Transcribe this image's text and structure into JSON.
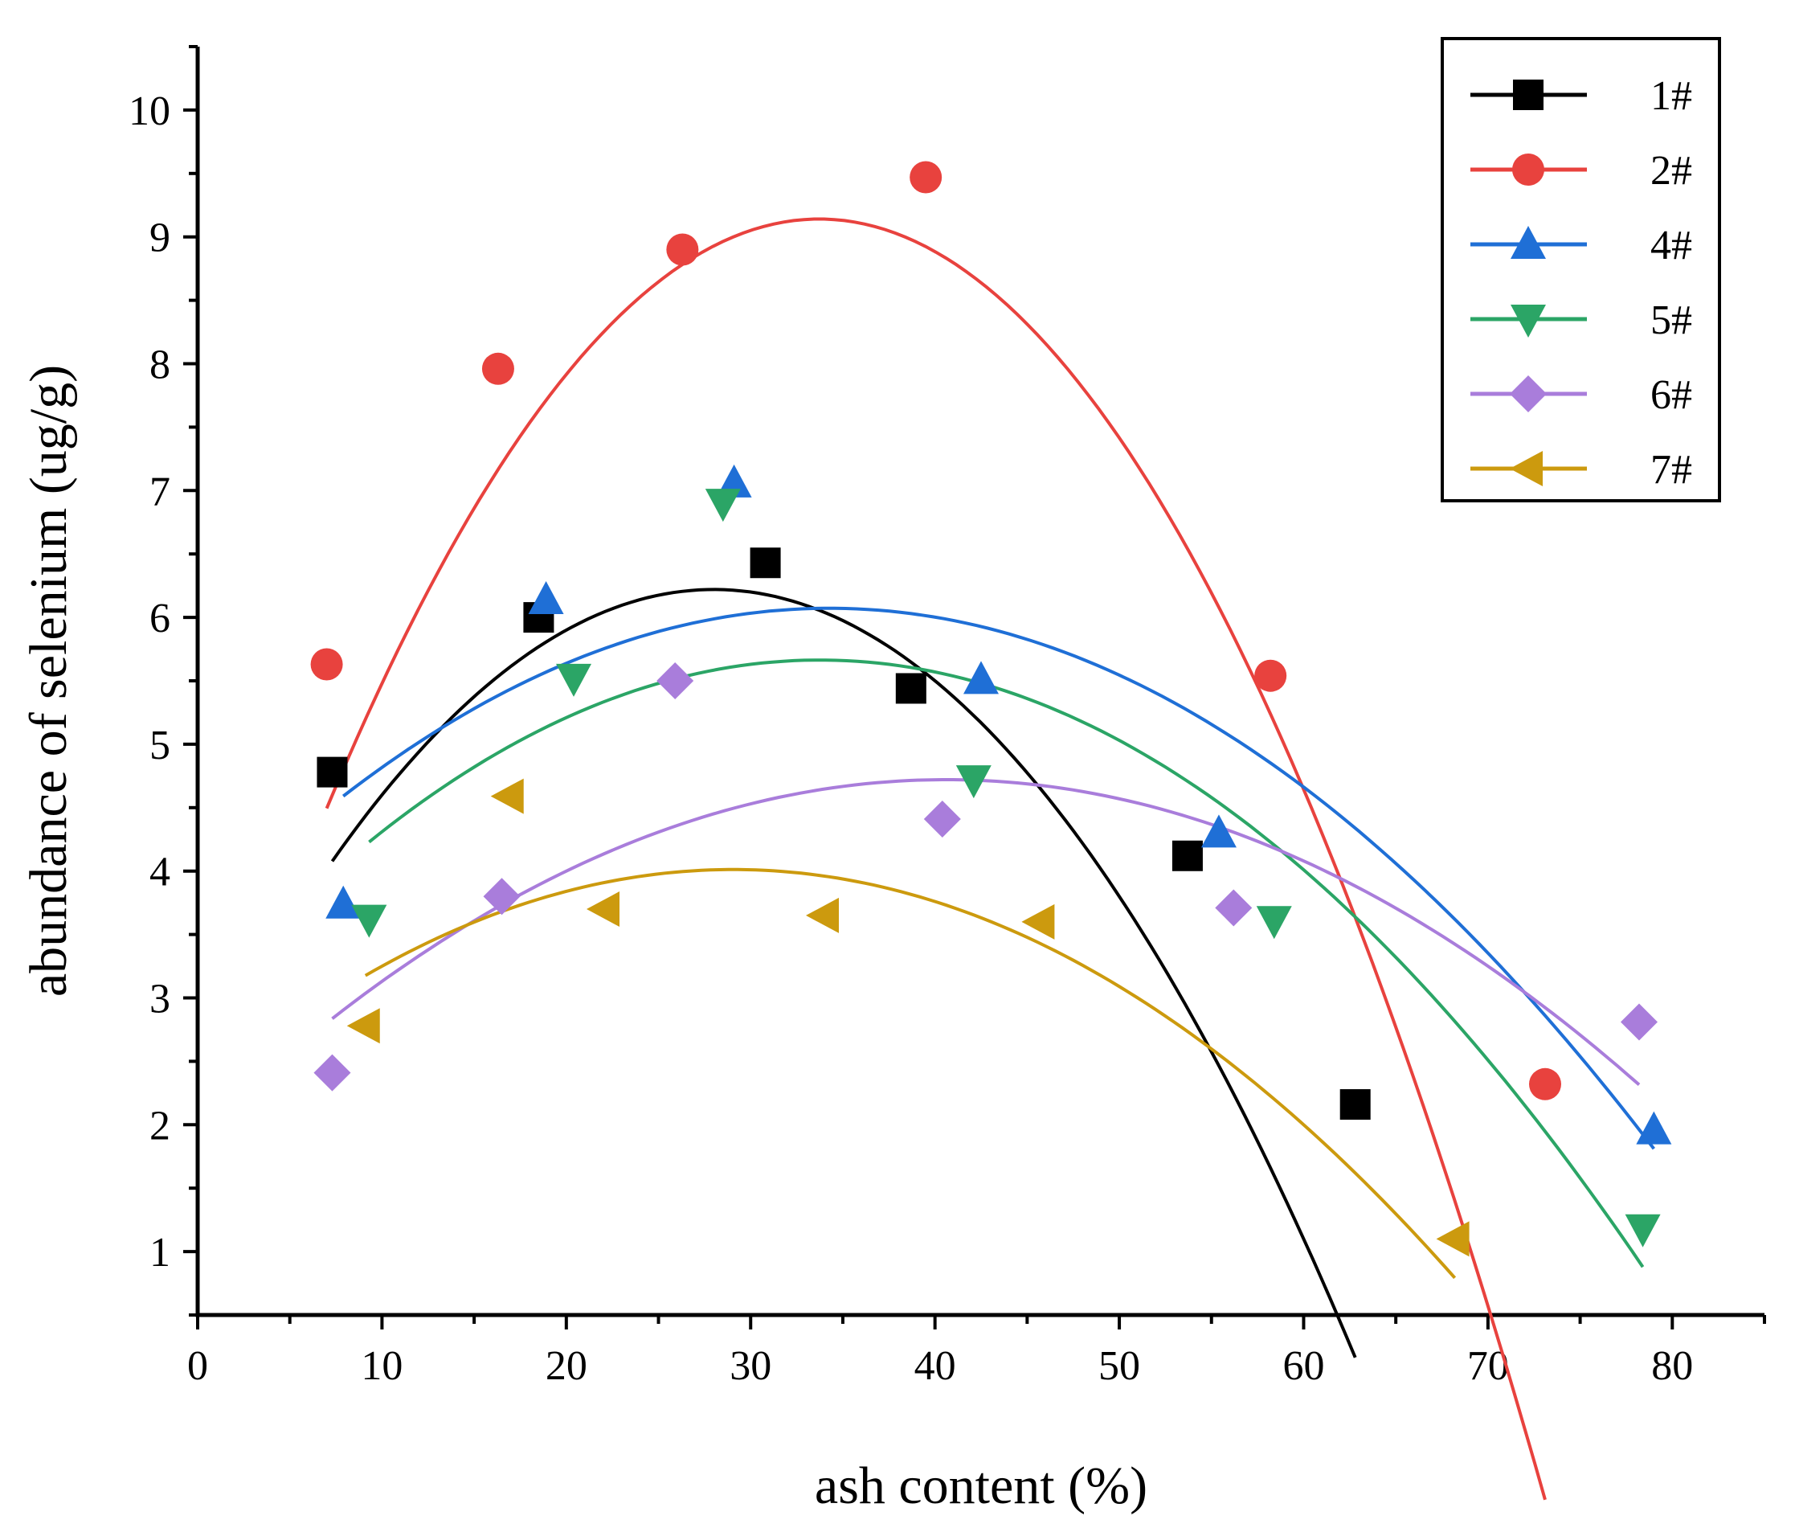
{
  "chart_data": {
    "type": "scatter",
    "xlabel": "ash content (%)",
    "ylabel": "abundance of selenium (ug/g)",
    "xlim": [
      0,
      85
    ],
    "ylim": [
      0.5,
      10.5
    ],
    "xticks": [
      0,
      10,
      20,
      30,
      40,
      50,
      60,
      70,
      80
    ],
    "yticks": [
      1,
      2,
      3,
      4,
      5,
      6,
      7,
      8,
      9,
      10
    ],
    "legend_position": "top-right",
    "grid": false,
    "series": [
      {
        "name": "1#",
        "color": "#000000",
        "marker": "square",
        "points": [
          [
            7.3,
            4.78
          ],
          [
            18.5,
            6.0
          ],
          [
            30.8,
            6.43
          ],
          [
            38.7,
            5.44
          ],
          [
            53.7,
            4.12
          ],
          [
            62.8,
            2.16
          ]
        ],
        "fit": [
          -0.005,
          0.28,
          2.3
        ],
        "fit_range": [
          7.3,
          62.8
        ]
      },
      {
        "name": "2#",
        "color": "#e8423e",
        "marker": "circle",
        "points": [
          [
            7.0,
            5.63
          ],
          [
            16.3,
            7.96
          ],
          [
            26.3,
            8.9
          ],
          [
            39.5,
            9.47
          ],
          [
            58.2,
            5.54
          ],
          [
            73.1,
            2.32
          ]
        ],
        "fit": [
          -0.00651,
          0.439,
          1.74
        ],
        "fit_range": [
          7.0,
          73.1
        ]
      },
      {
        "name": "4#",
        "color": "#1f6fd6",
        "marker": "triangle-up",
        "points": [
          [
            7.9,
            3.74
          ],
          [
            18.9,
            6.14
          ],
          [
            29.1,
            7.06
          ],
          [
            42.5,
            5.51
          ],
          [
            55.4,
            4.3
          ],
          [
            79.0,
            1.96
          ]
        ],
        "fit": [
          -0.00213,
          0.146,
          3.57
        ],
        "fit_range": [
          7.9,
          79.0
        ]
      },
      {
        "name": "5#",
        "color": "#2ba566",
        "marker": "triangle-down",
        "points": [
          [
            9.3,
            3.62
          ],
          [
            20.4,
            5.52
          ],
          [
            28.5,
            6.9
          ],
          [
            42.1,
            4.72
          ],
          [
            58.4,
            3.61
          ],
          [
            78.4,
            1.18
          ]
        ],
        "fit": [
          -0.0024,
          0.162,
          2.93
        ],
        "fit_range": [
          9.3,
          78.4
        ]
      },
      {
        "name": "6#",
        "color": "#a97ddb",
        "marker": "diamond",
        "points": [
          [
            7.3,
            2.41
          ],
          [
            16.5,
            3.8
          ],
          [
            25.9,
            5.5
          ],
          [
            40.4,
            4.41
          ],
          [
            56.2,
            3.71
          ],
          [
            78.2,
            2.81
          ]
        ],
        "fit": [
          -0.0017,
          0.138,
          1.92
        ],
        "fit_range": [
          7.3,
          78.2
        ]
      },
      {
        "name": "7#",
        "color": "#cc9a0e",
        "marker": "triangle-left",
        "points": [
          [
            9.1,
            2.78
          ],
          [
            16.9,
            4.59
          ],
          [
            22.1,
            3.7
          ],
          [
            34.0,
            3.65
          ],
          [
            45.7,
            3.6
          ],
          [
            68.2,
            1.1
          ]
        ],
        "fit": [
          -0.0021,
          0.122,
          2.24
        ],
        "fit_range": [
          9.1,
          68.2
        ]
      }
    ]
  }
}
